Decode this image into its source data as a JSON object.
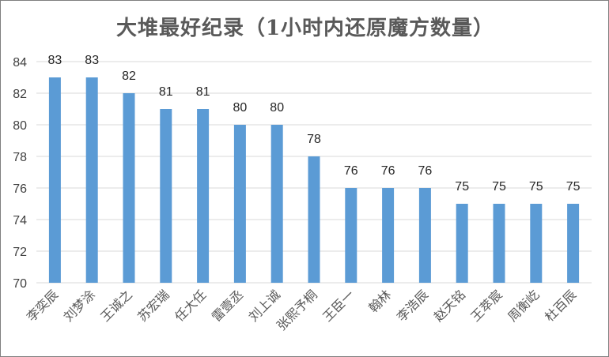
{
  "chart_data": {
    "type": "bar",
    "title": "大堆最好纪录（1小时内还原魔方数量）",
    "categories": [
      "李奕辰",
      "刘梦涂",
      "王诚之",
      "苏宏瑞",
      "任大任",
      "雷壹丞",
      "刘上诚",
      "张熙予桐",
      "王臣一",
      "翰林",
      "李浩辰",
      "赵天铭",
      "王萃宸",
      "周衡屹",
      "杜百辰"
    ],
    "values": [
      83,
      83,
      82,
      81,
      81,
      80,
      80,
      78,
      76,
      76,
      76,
      75,
      75,
      75,
      75
    ],
    "ylim": [
      70,
      84
    ],
    "yticks": [
      70,
      72,
      74,
      76,
      78,
      80,
      82,
      84
    ],
    "xlabel": "",
    "ylabel": "",
    "grid": true,
    "bar_color": "#5b9bd5",
    "grid_color": "#d9d9d9"
  }
}
